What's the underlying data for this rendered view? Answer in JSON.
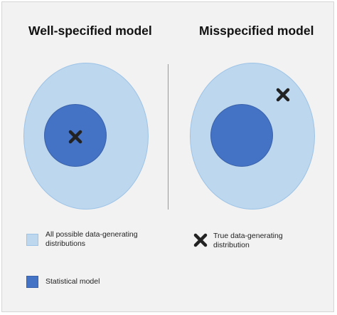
{
  "diagram": {
    "title_left": "Well-specified model",
    "title_right": "Misspecified model",
    "colors": {
      "outer_fill": "#bdd7ee",
      "inner_fill": "#4472c4",
      "marker": "#222222"
    },
    "legend": {
      "outer_label_line1": "All possible data-generating",
      "outer_label_line2": "distributions",
      "inner_label": "Statistical model",
      "marker_label_line1": "True data-generating",
      "marker_label_line2": "distribution"
    }
  }
}
